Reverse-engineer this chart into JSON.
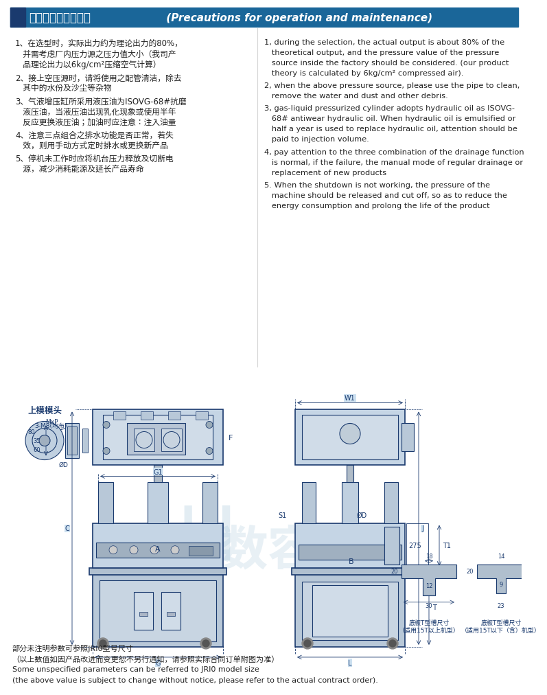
{
  "bg_color": "#cce0f0",
  "header_bg": "#1a6699",
  "header_text_cn": "操作及维护注意事项",
  "header_text_en": " (Precautions for operation and maintenance)",
  "header_accent": "#1a3a6e",
  "text_color_dark": "#1a1a2e",
  "text_color_gray": "#333333",
  "cn_items": [
    "1、在选型时，实际出力约为理论出力的80%，\n   并需考虑厂内压力源之压力值大小（我司产\n   品理论出力以6kg/cm²压缩空气计算）",
    "2、接上空压源时，请将使用之配管清洁，除去\n   其中的水份及沙尘等杂物",
    "3、气液增压缸所采用液压油为ISOVG-68#抗磨\n   液压油，当液压油出现乳化现象或使用半年\n   反应更换液压油；加油时应注意：注入油量",
    "4、注意三点组合之排水功能是否正常，若失\n   效，则用手动方式定时排水或更换新产品",
    "5、停机未工作时应将机台压力释放及切断电\n   源，减少消耗能源及延长产品寿命"
  ],
  "en_items": [
    "1, during the selection, the actual output is about 80% of the\n   theoretical output, and the pressure value of the pressure\n   source inside the factory should be considered. (our product\n   theory is calculated by 6kg/cm² compressed air).",
    "2, when the above pressure source, please use the pipe to clean,\n   remove the water and dust and other debris.",
    "3, gas-liquid pressurized cylinder adopts hydraulic oil as ISOVG-\n   68# antiwear hydraulic oil. When hydraulic oil is emulsified or\n   half a year is used to replace hydraulic oil, attention should be\n   paid to injection volume.",
    "4, pay attention to the three combination of the drainage function\n   is normal, if the failure, the manual mode of regular drainage or\n   replacement of new products",
    "5. When the shutdown is not working, the pressure of the\n   machine should be released and cut off, so as to reduce the\n   energy consumption and prolong the life of the product"
  ],
  "footer_cn1": "部分未注明参数可参照JRI0型号尺寸",
  "footer_cn2": "（以上数值如因产品改进而变更恕不另行通知，请参照实际合同订单附图为准）",
  "footer_en1": "Some unspecified parameters can be referred to JRI0 model size",
  "footer_en2": "(the above value is subject to change without notice, please refer to the actual contract order).",
  "label_shangmo": "上模模头",
  "label_dimA": "A",
  "label_dimB": "B",
  "label_dimC": "C",
  "label_dimF": "F",
  "label_dimG": "G",
  "label_dimG1": "G1",
  "label_dimJ": "J",
  "label_dimL": "L",
  "label_dimT": "T",
  "label_dimT1": "T1",
  "label_dimW1": "W1",
  "label_dimD": "ØD",
  "label_dim275": "275",
  "label_dimS1": "S1",
  "label_slot1_cn": "底板T型槽尺寸\n（适用15T以上机型）",
  "label_slot2_cn": "底板T型槽尺寸\n（适用15T以下（含）机型）",
  "slot1_dims": [
    "18",
    "12",
    "20",
    "30",
    "30"
  ],
  "slot2_dims": [
    "14",
    "9",
    "20",
    "23"
  ],
  "draw_color": "#1a3a6e",
  "dim_line_color": "#1a3a6e",
  "machine_fill": "#d0d8e8",
  "machine_stroke": "#1a3a6e"
}
